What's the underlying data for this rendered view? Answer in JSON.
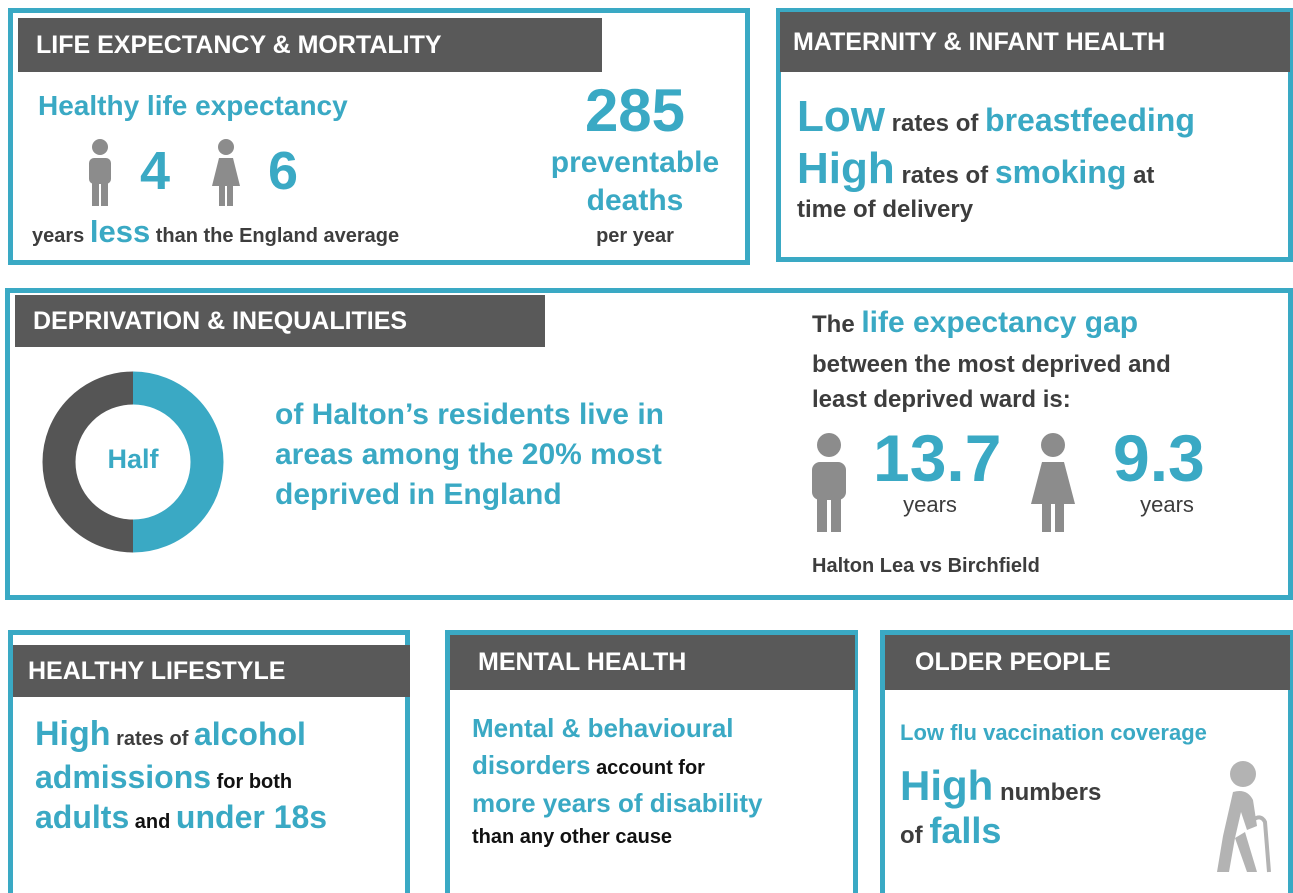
{
  "life": {
    "title": "LIFE EXPECTANCY & MORTALITY",
    "subtitle": "Healthy life expectancy",
    "male_value": 4,
    "female_value": 6,
    "note": [
      "years",
      "less",
      "than the England average"
    ],
    "deaths_value": 285,
    "deaths_lines": [
      "preventable",
      "deaths"
    ],
    "deaths_unit": "per year"
  },
  "maternity": {
    "title": "MATERNITY & INFANT HEALTH",
    "lines": [
      [
        "Low",
        "rates of",
        "breastfeeding"
      ],
      [
        "High",
        "rates of",
        "smoking",
        "at"
      ],
      [
        "time of delivery"
      ]
    ]
  },
  "deprivation": {
    "title": "DEPRIVATION & INEQUALITIES",
    "donut_label": "Half",
    "lines": [
      "of Halton’s residents live in",
      "areas among the 20% most",
      "deprived in England"
    ],
    "gap_lines": [
      [
        "The",
        "life expectancy gap"
      ],
      [
        "between the most deprived and"
      ],
      [
        "least deprived ward is:"
      ]
    ],
    "male_value": 13.7,
    "male_unit": "years",
    "female_value": 9.3,
    "female_unit": "years",
    "wards": "Halton Lea vs Birchfield"
  },
  "lifestyle": {
    "title": "HEALTHY LIFESTYLE",
    "lines": [
      [
        "High",
        "rates of",
        "alcohol"
      ],
      [
        "admissions",
        "for both"
      ],
      [
        "adults",
        "and",
        "under 18s"
      ]
    ]
  },
  "mental": {
    "title": "MENTAL HEALTH",
    "lines": [
      [
        "Mental & behavioural"
      ],
      [
        "disorders",
        "account for"
      ],
      [
        "more years of disability"
      ],
      [
        "than any other cause"
      ]
    ]
  },
  "older": {
    "title": "OLDER PEOPLE",
    "lines": [
      [
        "Low flu vaccination coverage"
      ],
      [
        "High",
        "numbers"
      ],
      [
        "of",
        "falls"
      ]
    ]
  }
}
